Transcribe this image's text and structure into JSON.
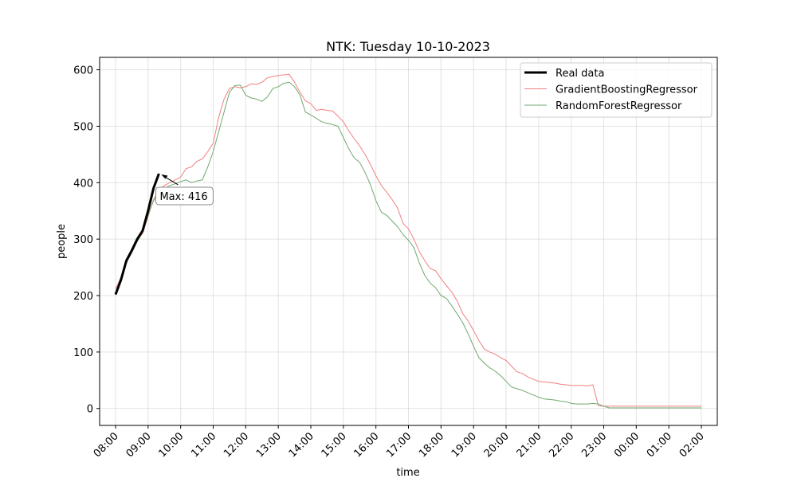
{
  "chart_data": {
    "type": "line",
    "title": "NTK: Tuesday 10-10-2023",
    "xlabel": "time",
    "ylabel": "people",
    "x_tick_labels": [
      "08:00",
      "09:00",
      "10:00",
      "11:00",
      "12:00",
      "13:00",
      "14:00",
      "15:00",
      "16:00",
      "17:00",
      "18:00",
      "19:00",
      "20:00",
      "21:00",
      "22:00",
      "23:00",
      "00:00",
      "01:00",
      "02:00"
    ],
    "y_ticks": [
      0,
      100,
      200,
      300,
      400,
      500,
      600
    ],
    "ylim": [
      -30,
      622
    ],
    "grid": true,
    "legend_position": "upper-right",
    "series": [
      {
        "name": "Real data",
        "color": "#000000",
        "x": [
          "08:00",
          "08:10",
          "08:20",
          "08:30",
          "08:40",
          "08:50",
          "09:00",
          "09:10",
          "09:20"
        ],
        "values": [
          202,
          228,
          262,
          280,
          300,
          315,
          350,
          390,
          416
        ]
      },
      {
        "name": "GradientBoostingRegressor",
        "color": "#f08080",
        "x": [
          "08:00",
          "08:10",
          "08:20",
          "08:30",
          "08:40",
          "08:50",
          "09:00",
          "09:10",
          "09:20",
          "09:30",
          "09:40",
          "09:50",
          "10:00",
          "10:10",
          "10:20",
          "10:30",
          "10:40",
          "10:50",
          "11:00",
          "11:10",
          "11:20",
          "11:30",
          "11:40",
          "11:50",
          "12:00",
          "12:10",
          "12:20",
          "12:30",
          "12:40",
          "12:50",
          "13:00",
          "13:10",
          "13:20",
          "13:30",
          "13:40",
          "13:50",
          "14:00",
          "14:10",
          "14:20",
          "14:30",
          "14:40",
          "14:50",
          "15:00",
          "15:10",
          "15:20",
          "15:30",
          "15:40",
          "15:50",
          "16:00",
          "16:10",
          "16:20",
          "16:30",
          "16:40",
          "16:50",
          "17:00",
          "17:10",
          "17:20",
          "17:30",
          "17:40",
          "17:50",
          "18:00",
          "18:10",
          "18:20",
          "18:30",
          "18:40",
          "18:50",
          "19:00",
          "19:10",
          "19:20",
          "19:30",
          "19:40",
          "19:50",
          "20:00",
          "20:10",
          "20:20",
          "20:30",
          "20:40",
          "20:50",
          "21:00",
          "21:10",
          "21:20",
          "21:30",
          "21:40",
          "21:50",
          "22:00",
          "22:10",
          "22:20",
          "22:30",
          "22:40",
          "22:50",
          "23:00",
          "23:10",
          "23:20",
          "23:30",
          "23:40",
          "23:50",
          "00:00",
          "00:10",
          "00:20",
          "00:30",
          "00:40",
          "00:50",
          "01:00",
          "01:10",
          "01:20",
          "01:30",
          "01:40",
          "01:50",
          "02:00"
        ],
        "values": [
          212,
          232,
          258,
          278,
          298,
          310,
          340,
          370,
          388,
          395,
          400,
          405,
          410,
          425,
          428,
          438,
          442,
          455,
          470,
          515,
          548,
          567,
          570,
          568,
          570,
          575,
          574,
          578,
          586,
          588,
          590,
          591,
          592,
          578,
          560,
          545,
          540,
          528,
          530,
          528,
          527,
          518,
          508,
          492,
          478,
          465,
          450,
          432,
          412,
          395,
          383,
          370,
          355,
          328,
          318,
          300,
          278,
          262,
          248,
          244,
          230,
          218,
          206,
          190,
          168,
          155,
          138,
          120,
          105,
          100,
          96,
          90,
          85,
          75,
          65,
          62,
          56,
          52,
          48,
          47,
          46,
          45,
          43,
          42,
          41,
          41,
          41,
          40,
          42,
          5,
          4,
          4,
          4,
          4,
          4,
          4,
          4,
          4,
          4,
          4,
          4,
          4,
          4,
          4,
          4,
          4,
          4,
          4,
          4
        ]
      },
      {
        "name": "RandomForestRegressor",
        "color": "#70a870",
        "x": [
          "08:00",
          "08:10",
          "08:20",
          "08:30",
          "08:40",
          "08:50",
          "09:00",
          "09:10",
          "09:20",
          "09:30",
          "09:40",
          "09:50",
          "10:00",
          "10:10",
          "10:20",
          "10:30",
          "10:40",
          "10:50",
          "11:00",
          "11:10",
          "11:20",
          "11:30",
          "11:40",
          "11:50",
          "12:00",
          "12:10",
          "12:20",
          "12:30",
          "12:40",
          "12:50",
          "13:00",
          "13:10",
          "13:20",
          "13:30",
          "13:40",
          "13:50",
          "14:00",
          "14:10",
          "14:20",
          "14:30",
          "14:40",
          "14:50",
          "15:00",
          "15:10",
          "15:20",
          "15:30",
          "15:40",
          "15:50",
          "16:00",
          "16:10",
          "16:20",
          "16:30",
          "16:40",
          "16:50",
          "17:00",
          "17:10",
          "17:20",
          "17:30",
          "17:40",
          "17:50",
          "18:00",
          "18:10",
          "18:20",
          "18:30",
          "18:40",
          "18:50",
          "19:00",
          "19:10",
          "19:20",
          "19:30",
          "19:40",
          "19:50",
          "20:00",
          "20:10",
          "20:20",
          "20:30",
          "20:40",
          "20:50",
          "21:00",
          "21:10",
          "21:20",
          "21:30",
          "21:40",
          "21:50",
          "22:00",
          "22:10",
          "22:20",
          "22:30",
          "22:40",
          "22:50",
          "23:00",
          "23:10",
          "23:20",
          "23:30",
          "23:40",
          "23:50",
          "00:00",
          "00:10",
          "00:20",
          "00:30",
          "00:40",
          "00:50",
          "01:00",
          "01:10",
          "01:20",
          "01:30",
          "01:40",
          "01:50",
          "02:00"
        ],
        "values": [
          205,
          230,
          258,
          276,
          296,
          312,
          342,
          368,
          382,
          390,
          395,
          398,
          402,
          405,
          400,
          403,
          405,
          428,
          455,
          490,
          525,
          560,
          572,
          573,
          555,
          550,
          548,
          544,
          552,
          567,
          570,
          576,
          578,
          570,
          555,
          525,
          520,
          514,
          508,
          505,
          503,
          500,
          480,
          460,
          444,
          436,
          418,
          396,
          368,
          348,
          342,
          332,
          322,
          308,
          298,
          285,
          258,
          236,
          222,
          214,
          200,
          195,
          182,
          167,
          152,
          132,
          110,
          90,
          80,
          72,
          66,
          58,
          48,
          38,
          35,
          32,
          28,
          24,
          20,
          17,
          16,
          15,
          13,
          12,
          9,
          8,
          8,
          8,
          9,
          8,
          4,
          1,
          1,
          1,
          1,
          1,
          1,
          1,
          1,
          1,
          1,
          1,
          1,
          1,
          1,
          1,
          1,
          1,
          1
        ]
      }
    ],
    "annotations": [
      {
        "text": "Max: 416",
        "x": "09:20",
        "y": 416
      }
    ]
  }
}
